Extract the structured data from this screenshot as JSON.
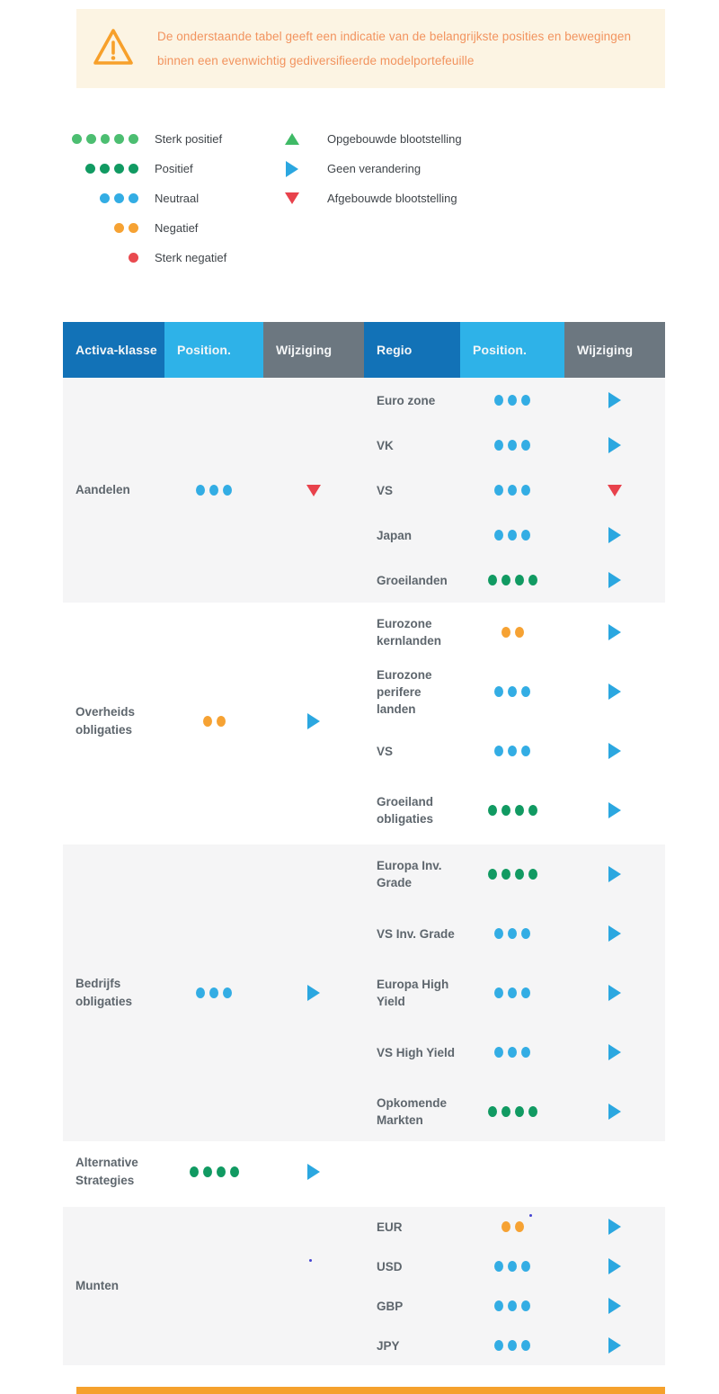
{
  "warning": {
    "text": "De onderstaande tabel geeft een indicatie van de belangrijkste posities en bewegingen binnen een evenwichtig gediversifieerde modelportefeuille"
  },
  "legend": {
    "positions": [
      {
        "dots": 5,
        "level": "strong_positive",
        "label": "Sterk positief"
      },
      {
        "dots": 4,
        "level": "positive",
        "label": "Positief"
      },
      {
        "dots": 3,
        "level": "neutral",
        "label": "Neutraal"
      },
      {
        "dots": 2,
        "level": "negative",
        "label": "Negatief"
      },
      {
        "dots": 1,
        "level": "strong_negative",
        "label": "Sterk negatief"
      }
    ],
    "changes": [
      {
        "direction": "up",
        "label": "Opgebouwde blootstelling"
      },
      {
        "direction": "right",
        "label": "Geen verandering"
      },
      {
        "direction": "down",
        "label": "Afgebouwde blootstelling"
      }
    ]
  },
  "table": {
    "headers": [
      "Activa-klasse",
      "Position.",
      "Wijziging",
      "Regio",
      "Position.",
      "Wijziging"
    ],
    "sections": [
      {
        "asset_class": "Aandelen",
        "position": {
          "dots": 3,
          "level": "neutral"
        },
        "change": "down",
        "shaded": true,
        "key": "aandelen",
        "rows": [
          {
            "region": "Euro zone",
            "dots": 3,
            "level": "neutral",
            "change": "right"
          },
          {
            "region": "VK",
            "dots": 3,
            "level": "neutral",
            "change": "right"
          },
          {
            "region": "VS",
            "dots": 3,
            "level": "neutral",
            "change": "down"
          },
          {
            "region": "Japan",
            "dots": 3,
            "level": "neutral",
            "change": "right"
          },
          {
            "region": "Groeilanden",
            "dots": 4,
            "level": "positive",
            "change": "right"
          }
        ]
      },
      {
        "asset_class": "Overheids obligaties",
        "position": {
          "dots": 2,
          "level": "negative"
        },
        "change": "right",
        "shaded": false,
        "key": "overheids",
        "rows": [
          {
            "region": "Eurozone kernlanden",
            "dots": 2,
            "level": "negative",
            "change": "right"
          },
          {
            "region": "Eurozone perifere landen",
            "dots": 3,
            "level": "neutral",
            "change": "right"
          },
          {
            "region": "VS",
            "dots": 3,
            "level": "neutral",
            "change": "right"
          },
          {
            "region": "Groeiland obligaties",
            "dots": 4,
            "level": "positive",
            "change": "right"
          }
        ]
      },
      {
        "asset_class": "Bedrijfs obligaties",
        "position": {
          "dots": 3,
          "level": "neutral"
        },
        "change": "right",
        "shaded": true,
        "key": "bedrijfs",
        "rows": [
          {
            "region": "Europa Inv. Grade",
            "dots": 4,
            "level": "positive",
            "change": "right"
          },
          {
            "region": "VS Inv. Grade",
            "dots": 3,
            "level": "neutral",
            "change": "right"
          },
          {
            "region": "Europa High Yield",
            "dots": 3,
            "level": "neutral",
            "change": "right"
          },
          {
            "region": "VS High Yield",
            "dots": 3,
            "level": "neutral",
            "change": "right"
          },
          {
            "region": "Opkomende Markten",
            "dots": 4,
            "level": "positive",
            "change": "right"
          }
        ]
      },
      {
        "asset_class": "Alternative Strategies",
        "position": {
          "dots": 4,
          "level": "positive"
        },
        "change": "right",
        "shaded": false,
        "key": "alternative",
        "rows": []
      },
      {
        "asset_class": "Munten",
        "position": null,
        "change": null,
        "shaded": true,
        "key": "munten",
        "rows": [
          {
            "region": "EUR",
            "dots": 2,
            "level": "negative",
            "change": "right",
            "marker": true
          },
          {
            "region": "USD",
            "dots": 3,
            "level": "neutral",
            "change": "right"
          },
          {
            "region": "GBP",
            "dots": 3,
            "level": "neutral",
            "change": "right"
          },
          {
            "region": "JPY",
            "dots": 3,
            "level": "neutral",
            "change": "right"
          }
        ]
      }
    ]
  },
  "colors": {
    "strong_positive": "#4CBE71",
    "positive": "#119A62",
    "neutral": "#33ADE4",
    "negative": "#F6A233",
    "strong_negative": "#E94A4F",
    "change_up": "#3FBA66",
    "change_right": "#2BA7E0",
    "change_down": "#E8424C",
    "header_dark": "#1272B7",
    "header_light": "#2EB2E8",
    "header_gray": "#6C7780",
    "warning_accent": "#F7A02B"
  }
}
